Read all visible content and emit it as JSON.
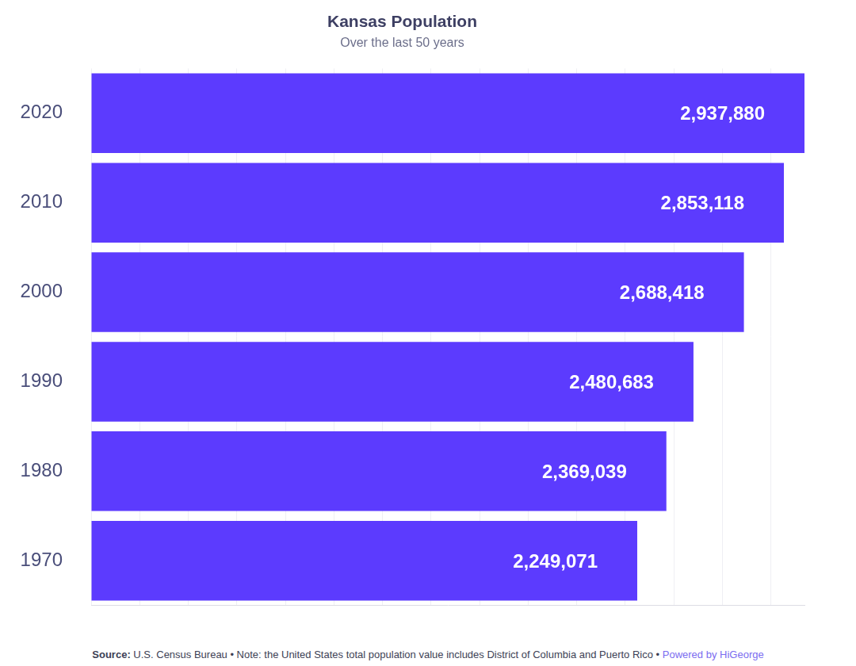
{
  "chart_data": {
    "type": "bar",
    "orientation": "horizontal",
    "title": "Kansas Population",
    "subtitle": "Over the last 50 years",
    "categories": [
      "2020",
      "2010",
      "2000",
      "1990",
      "1980",
      "1970"
    ],
    "values": [
      2937880,
      2853118,
      2688418,
      2480683,
      2369039,
      2249071
    ],
    "value_labels": [
      "2,937,880",
      "2,853,118",
      "2,688,418",
      "2,480,683",
      "2,369,039",
      "2,249,071"
    ],
    "data_labels": true,
    "color": "#5c3bfe",
    "xlim": [
      0,
      2937880
    ],
    "xticks": [
      0,
      200000,
      400000,
      600000,
      800000,
      1000000,
      1200000,
      1400000,
      1600000,
      1800000,
      2000000,
      2200000,
      2400000,
      2600000,
      2800000
    ],
    "grid": true,
    "tick_labels": "y",
    "source_label": "Source:",
    "source": "U.S. Census Bureau • Note: the United States total population value includes District of Columbia and Puerto Rico •",
    "credit": "Powered by HiGeorge"
  }
}
